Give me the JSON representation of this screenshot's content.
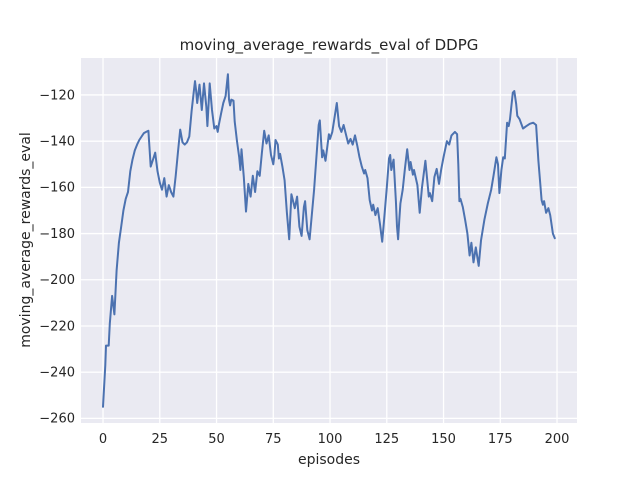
{
  "chart_data": {
    "type": "line",
    "title": "moving_average_rewards_eval of DDPG",
    "xlabel": "episodes",
    "ylabel": "moving_average_rewards_eval",
    "plot_bg_color": "#EAEAF2",
    "grid": true,
    "grid_color": "#FFFFFF",
    "line_color": "#4C72B0",
    "text_color": "#262626",
    "xlim": [
      -9.7,
      208.8
    ],
    "ylim": [
      -262,
      -104
    ],
    "xticks": [
      0,
      25,
      50,
      75,
      100,
      125,
      150,
      175,
      200
    ],
    "xtick_labels": [
      "0",
      "25",
      "50",
      "75",
      "100",
      "125",
      "150",
      "175",
      "200"
    ],
    "yticks": [
      -120,
      -140,
      -160,
      -180,
      -200,
      -220,
      -240,
      -260
    ],
    "ytick_labels": [
      "−120",
      "−140",
      "−160",
      "−180",
      "−200",
      "−220",
      "−240",
      "−260"
    ],
    "legend": null,
    "series": [
      {
        "name": "moving_average_rewards_eval",
        "points": [
          [
            0,
            -255
          ],
          [
            1,
            -237
          ],
          [
            1.3,
            -228.5
          ],
          [
            2.5,
            -228.5
          ],
          [
            3,
            -219
          ],
          [
            4,
            -207
          ],
          [
            5,
            -215
          ],
          [
            6,
            -196
          ],
          [
            7,
            -184
          ],
          [
            8,
            -177
          ],
          [
            9,
            -170
          ],
          [
            10,
            -165
          ],
          [
            11,
            -162
          ],
          [
            12,
            -153
          ],
          [
            13,
            -148
          ],
          [
            14,
            -144
          ],
          [
            15,
            -141.5
          ],
          [
            16,
            -139.5
          ],
          [
            17,
            -138
          ],
          [
            18,
            -136.5
          ],
          [
            19,
            -136
          ],
          [
            20,
            -135.5
          ],
          [
            21,
            -151
          ],
          [
            22,
            -148
          ],
          [
            23,
            -145
          ],
          [
            24,
            -153
          ],
          [
            25,
            -158
          ],
          [
            26,
            -161
          ],
          [
            27,
            -156
          ],
          [
            28,
            -164
          ],
          [
            29,
            -159
          ],
          [
            30,
            -162
          ],
          [
            31,
            -164
          ],
          [
            32,
            -155
          ],
          [
            33,
            -145
          ],
          [
            34,
            -135
          ],
          [
            35,
            -140.5
          ],
          [
            36,
            -141.5
          ],
          [
            37,
            -140.5
          ],
          [
            38,
            -138
          ],
          [
            39,
            -127
          ],
          [
            40,
            -118.5
          ],
          [
            40.5,
            -114
          ],
          [
            41,
            -118
          ],
          [
            41.5,
            -123.5
          ],
          [
            42.5,
            -115.5
          ],
          [
            43.5,
            -126.5
          ],
          [
            44.5,
            -115
          ],
          [
            45.5,
            -125
          ],
          [
            46,
            -133.5
          ],
          [
            47,
            -115
          ],
          [
            48,
            -126.5
          ],
          [
            49,
            -134.5
          ],
          [
            50,
            -133.5
          ],
          [
            50.5,
            -136
          ],
          [
            51,
            -133
          ],
          [
            52,
            -128
          ],
          [
            53,
            -123.5
          ],
          [
            54,
            -120.5
          ],
          [
            55,
            -111
          ],
          [
            55.5,
            -122
          ],
          [
            56,
            -124.5
          ],
          [
            56.5,
            -122
          ],
          [
            57.5,
            -122.5
          ],
          [
            58,
            -131.5
          ],
          [
            59,
            -140
          ],
          [
            60,
            -147
          ],
          [
            60.5,
            -152.5
          ],
          [
            61,
            -143.5
          ],
          [
            62,
            -155.5
          ],
          [
            63,
            -170.5
          ],
          [
            64,
            -158.5
          ],
          [
            65,
            -164
          ],
          [
            66,
            -155
          ],
          [
            67,
            -162
          ],
          [
            68,
            -153
          ],
          [
            69,
            -155
          ],
          [
            70,
            -145
          ],
          [
            71,
            -135.5
          ],
          [
            72,
            -141
          ],
          [
            73,
            -137.5
          ],
          [
            74,
            -146
          ],
          [
            75,
            -150
          ],
          [
            75.5,
            -146
          ],
          [
            76,
            -139.5
          ],
          [
            77,
            -141.5
          ],
          [
            77.5,
            -147.5
          ],
          [
            78,
            -145.5
          ],
          [
            79,
            -151
          ],
          [
            80,
            -157
          ],
          [
            81,
            -171
          ],
          [
            82,
            -182.5
          ],
          [
            83,
            -163
          ],
          [
            84.5,
            -169
          ],
          [
            85.5,
            -164
          ],
          [
            86.5,
            -177
          ],
          [
            87.5,
            -181
          ],
          [
            88.5,
            -168.5
          ],
          [
            89,
            -166
          ],
          [
            90,
            -178.5
          ],
          [
            91,
            -182.5
          ],
          [
            93,
            -161
          ],
          [
            95,
            -133
          ],
          [
            95.5,
            -131
          ],
          [
            96.5,
            -147
          ],
          [
            97,
            -144
          ],
          [
            98,
            -148.5
          ],
          [
            99.5,
            -137
          ],
          [
            100,
            -139
          ],
          [
            101,
            -136
          ],
          [
            103,
            -123.5
          ],
          [
            104,
            -133.5
          ],
          [
            105,
            -136
          ],
          [
            106,
            -133
          ],
          [
            107,
            -137
          ],
          [
            108,
            -141
          ],
          [
            109,
            -139
          ],
          [
            110,
            -141.5
          ],
          [
            111,
            -137.5
          ],
          [
            112,
            -142
          ],
          [
            113,
            -147
          ],
          [
            114,
            -151
          ],
          [
            115,
            -154
          ],
          [
            115.5,
            -152.5
          ],
          [
            116.5,
            -156
          ],
          [
            117.5,
            -165.5
          ],
          [
            118.5,
            -170
          ],
          [
            119,
            -167.5
          ],
          [
            120,
            -172
          ],
          [
            121,
            -169
          ],
          [
            122,
            -176
          ],
          [
            123,
            -183.5
          ],
          [
            124,
            -172
          ],
          [
            125,
            -160
          ],
          [
            126,
            -147.5
          ],
          [
            126.5,
            -146
          ],
          [
            127,
            -152.5
          ],
          [
            128,
            -148
          ],
          [
            129,
            -166
          ],
          [
            129.5,
            -177
          ],
          [
            130,
            -182.5
          ],
          [
            130.5,
            -174
          ],
          [
            131,
            -167
          ],
          [
            132,
            -161
          ],
          [
            133,
            -152
          ],
          [
            134,
            -143.5
          ],
          [
            135,
            -152.5
          ],
          [
            135.5,
            -149
          ],
          [
            136.5,
            -154.5
          ],
          [
            137,
            -152.5
          ],
          [
            138.5,
            -159
          ],
          [
            139.5,
            -171
          ],
          [
            140.5,
            -160
          ],
          [
            142,
            -148.5
          ],
          [
            143.5,
            -164
          ],
          [
            144,
            -162.5
          ],
          [
            145,
            -166
          ],
          [
            146,
            -155.5
          ],
          [
            147,
            -152
          ],
          [
            148,
            -158.5
          ],
          [
            149,
            -152
          ],
          [
            150,
            -147
          ],
          [
            151.5,
            -140
          ],
          [
            152.5,
            -141.5
          ],
          [
            153.5,
            -137.5
          ],
          [
            155,
            -136
          ],
          [
            156,
            -137
          ],
          [
            156.5,
            -150
          ],
          [
            157,
            -166
          ],
          [
            157.5,
            -165
          ],
          [
            158.5,
            -168.5
          ],
          [
            159.5,
            -174
          ],
          [
            160.5,
            -180
          ],
          [
            161.5,
            -189.5
          ],
          [
            162.3,
            -184
          ],
          [
            163.2,
            -192.5
          ],
          [
            164.2,
            -186
          ],
          [
            165.5,
            -194
          ],
          [
            166.5,
            -183
          ],
          [
            168,
            -174
          ],
          [
            169.5,
            -167
          ],
          [
            171,
            -161
          ],
          [
            172,
            -155
          ],
          [
            173.3,
            -147
          ],
          [
            174,
            -150
          ],
          [
            174.6,
            -162.5
          ],
          [
            175.5,
            -152.5
          ],
          [
            176.3,
            -147
          ],
          [
            177,
            -147.5
          ],
          [
            178,
            -132
          ],
          [
            178.7,
            -133.5
          ],
          [
            179.3,
            -130.5
          ],
          [
            180.5,
            -119
          ],
          [
            181.2,
            -118.3
          ],
          [
            182,
            -124
          ],
          [
            182.5,
            -129
          ],
          [
            183.5,
            -130.5
          ],
          [
            185,
            -134.5
          ],
          [
            186.5,
            -133.5
          ],
          [
            188,
            -132.5
          ],
          [
            189.5,
            -132
          ],
          [
            190.8,
            -133
          ],
          [
            191.8,
            -148.5
          ],
          [
            192.5,
            -157
          ],
          [
            193.2,
            -165.5
          ],
          [
            193.8,
            -167.5
          ],
          [
            194.3,
            -166
          ],
          [
            195.2,
            -171
          ],
          [
            196.2,
            -169
          ],
          [
            197,
            -172
          ],
          [
            198.2,
            -180
          ],
          [
            199,
            -182
          ]
        ]
      }
    ]
  }
}
